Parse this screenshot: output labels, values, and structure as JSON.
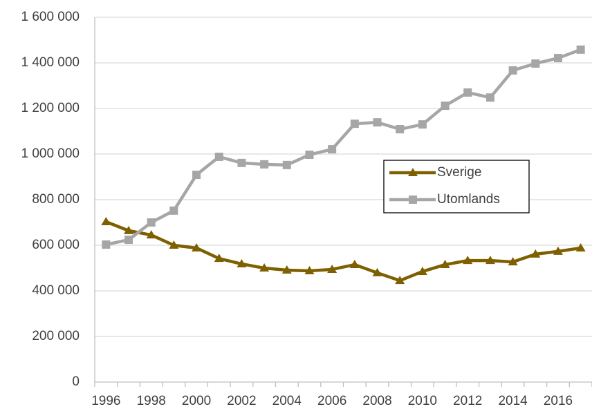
{
  "chart_data": {
    "type": "line",
    "categories": [
      "1996",
      null,
      "1998",
      null,
      "2000",
      null,
      "2002",
      null,
      "2004",
      null,
      "2006",
      null,
      "2008",
      null,
      "2010",
      null,
      "2012",
      null,
      "2014",
      null,
      "2016",
      null
    ],
    "series": [
      {
        "name": "Sverige",
        "color": "#7f6000",
        "marker": "triangle",
        "values": [
          703000,
          664000,
          645000,
          600000,
          588000,
          542000,
          518000,
          500000,
          491000,
          488000,
          494000,
          515000,
          479000,
          445000,
          485000,
          515000,
          533000,
          533000,
          527000,
          561000,
          573000,
          588000
        ]
      },
      {
        "name": "Utomlands",
        "color": "#a6a6a6",
        "marker": "square",
        "values": [
          603000,
          624000,
          700000,
          752000,
          909000,
          988000,
          961000,
          955000,
          952000,
          997000,
          1021000,
          1133000,
          1139000,
          1109000,
          1130000,
          1212000,
          1270000,
          1248000,
          1367000,
          1397000,
          1421000,
          1458000
        ]
      }
    ],
    "ylim": [
      0,
      1600000
    ],
    "yticks": [
      0,
      {
        "value": 200000,
        "label": "200 000"
      },
      {
        "value": 400000,
        "label": "400 000"
      },
      {
        "value": 600000,
        "label": "600 000"
      },
      {
        "value": 800000,
        "label": "800 000"
      },
      {
        "value": 1000000,
        "label": "1 000 000"
      },
      {
        "value": 1200000,
        "label": "1 200 000"
      },
      {
        "value": 1400000,
        "label": "1 400 000"
      },
      {
        "value": 1600000,
        "label": "1 600 000"
      }
    ],
    "grid": true,
    "legend": "right"
  }
}
